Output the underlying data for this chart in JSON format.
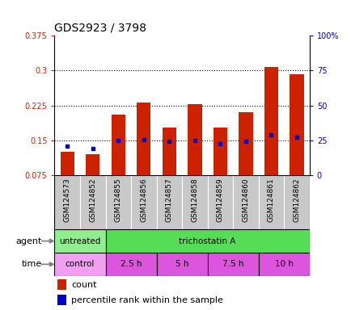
{
  "title": "GDS2923 / 3798",
  "samples": [
    "GSM124573",
    "GSM124852",
    "GSM124855",
    "GSM124856",
    "GSM124857",
    "GSM124858",
    "GSM124859",
    "GSM124860",
    "GSM124861",
    "GSM124862"
  ],
  "count_values": [
    0.125,
    0.12,
    0.205,
    0.232,
    0.178,
    0.228,
    0.178,
    0.21,
    0.308,
    0.292
  ],
  "percentile_values": [
    0.137,
    0.133,
    0.15,
    0.152,
    0.147,
    0.15,
    0.143,
    0.147,
    0.162,
    0.156
  ],
  "ylim_left": [
    0.075,
    0.375
  ],
  "ylim_right": [
    0,
    100
  ],
  "yticks_left": [
    0.075,
    0.15,
    0.225,
    0.3,
    0.375
  ],
  "yticks_right": [
    0,
    25,
    50,
    75,
    100
  ],
  "ytick_labels_left": [
    "0.075",
    "0.15",
    "0.225",
    "0.3",
    "0.375"
  ],
  "ytick_labels_right": [
    "0",
    "25",
    "50",
    "75",
    "100%"
  ],
  "agent_groups": [
    {
      "label": "untreated",
      "color": "#90ee90",
      "span": [
        0,
        2
      ]
    },
    {
      "label": "trichostatin A",
      "color": "#55dd55",
      "span": [
        2,
        10
      ]
    }
  ],
  "time_groups": [
    {
      "label": "control",
      "color": "#f0a0f0",
      "span": [
        0,
        2
      ]
    },
    {
      "label": "2.5 h",
      "color": "#dd55dd",
      "span": [
        2,
        4
      ]
    },
    {
      "label": "5 h",
      "color": "#dd55dd",
      "span": [
        4,
        6
      ]
    },
    {
      "label": "7.5 h",
      "color": "#dd55dd",
      "span": [
        6,
        8
      ]
    },
    {
      "label": "10 h",
      "color": "#dd55dd",
      "span": [
        8,
        10
      ]
    }
  ],
  "bar_color": "#cc2200",
  "percentile_color": "#0000cc",
  "bar_width": 0.55,
  "background_color": "#ffffff",
  "left_label_color": "#cc2200",
  "right_label_color": "#0000cc",
  "tick_bg_color": "#c8c8c8",
  "legend_count_label": "count",
  "legend_percentile_label": "percentile rank within the sample",
  "grid_lines": [
    0.15,
    0.225,
    0.3
  ]
}
